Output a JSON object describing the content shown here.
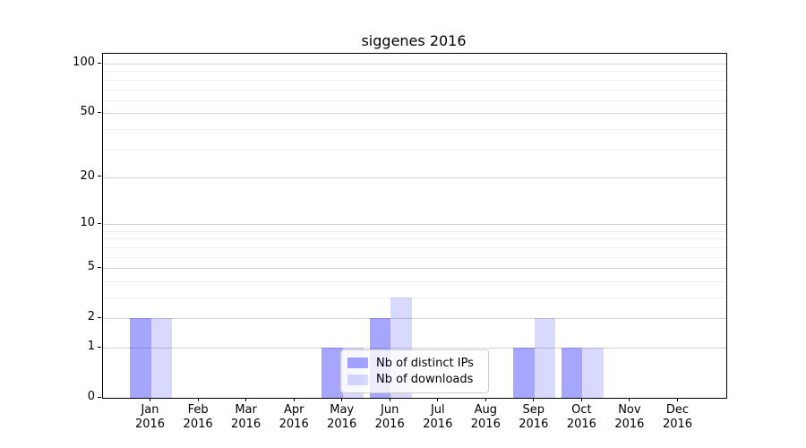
{
  "chart_data": {
    "type": "bar",
    "title": "siggenes 2016",
    "categories": [
      "Jan 2016",
      "Feb 2016",
      "Mar 2016",
      "Apr 2016",
      "May 2016",
      "Jun 2016",
      "Jul 2016",
      "Aug 2016",
      "Sep 2016",
      "Oct 2016",
      "Nov 2016",
      "Dec 2016"
    ],
    "series": [
      {
        "name": "Nb of distinct IPs",
        "color": "rgba(0,0,255,0.35)",
        "values": [
          2,
          0,
          0,
          0,
          1,
          2,
          0,
          0,
          1,
          1,
          0,
          0
        ]
      },
      {
        "name": "Nb of downloads",
        "color": "rgba(0,0,255,0.15)",
        "values": [
          2,
          0,
          0,
          0,
          1,
          3,
          0,
          0,
          2,
          1,
          0,
          0
        ]
      }
    ],
    "xlabel": "",
    "ylabel": "",
    "yscale": "log10(1+x)",
    "ylim": [
      0,
      115
    ],
    "y_major_ticks": [
      0,
      1,
      2,
      5,
      10,
      20,
      50,
      100
    ],
    "y_minor_ticks": [
      3,
      4,
      6,
      7,
      8,
      9,
      30,
      40,
      60,
      70,
      80,
      90
    ],
    "grid": true,
    "legend_position": "lower center inside plot"
  },
  "colors": {
    "major_grid": "#d4d4d4",
    "minor_grid": "#efefef",
    "axis": "#000000",
    "text": "#000000",
    "legend_border": "#cccccc",
    "legend_background": "rgba(255,255,255,0.8)"
  }
}
